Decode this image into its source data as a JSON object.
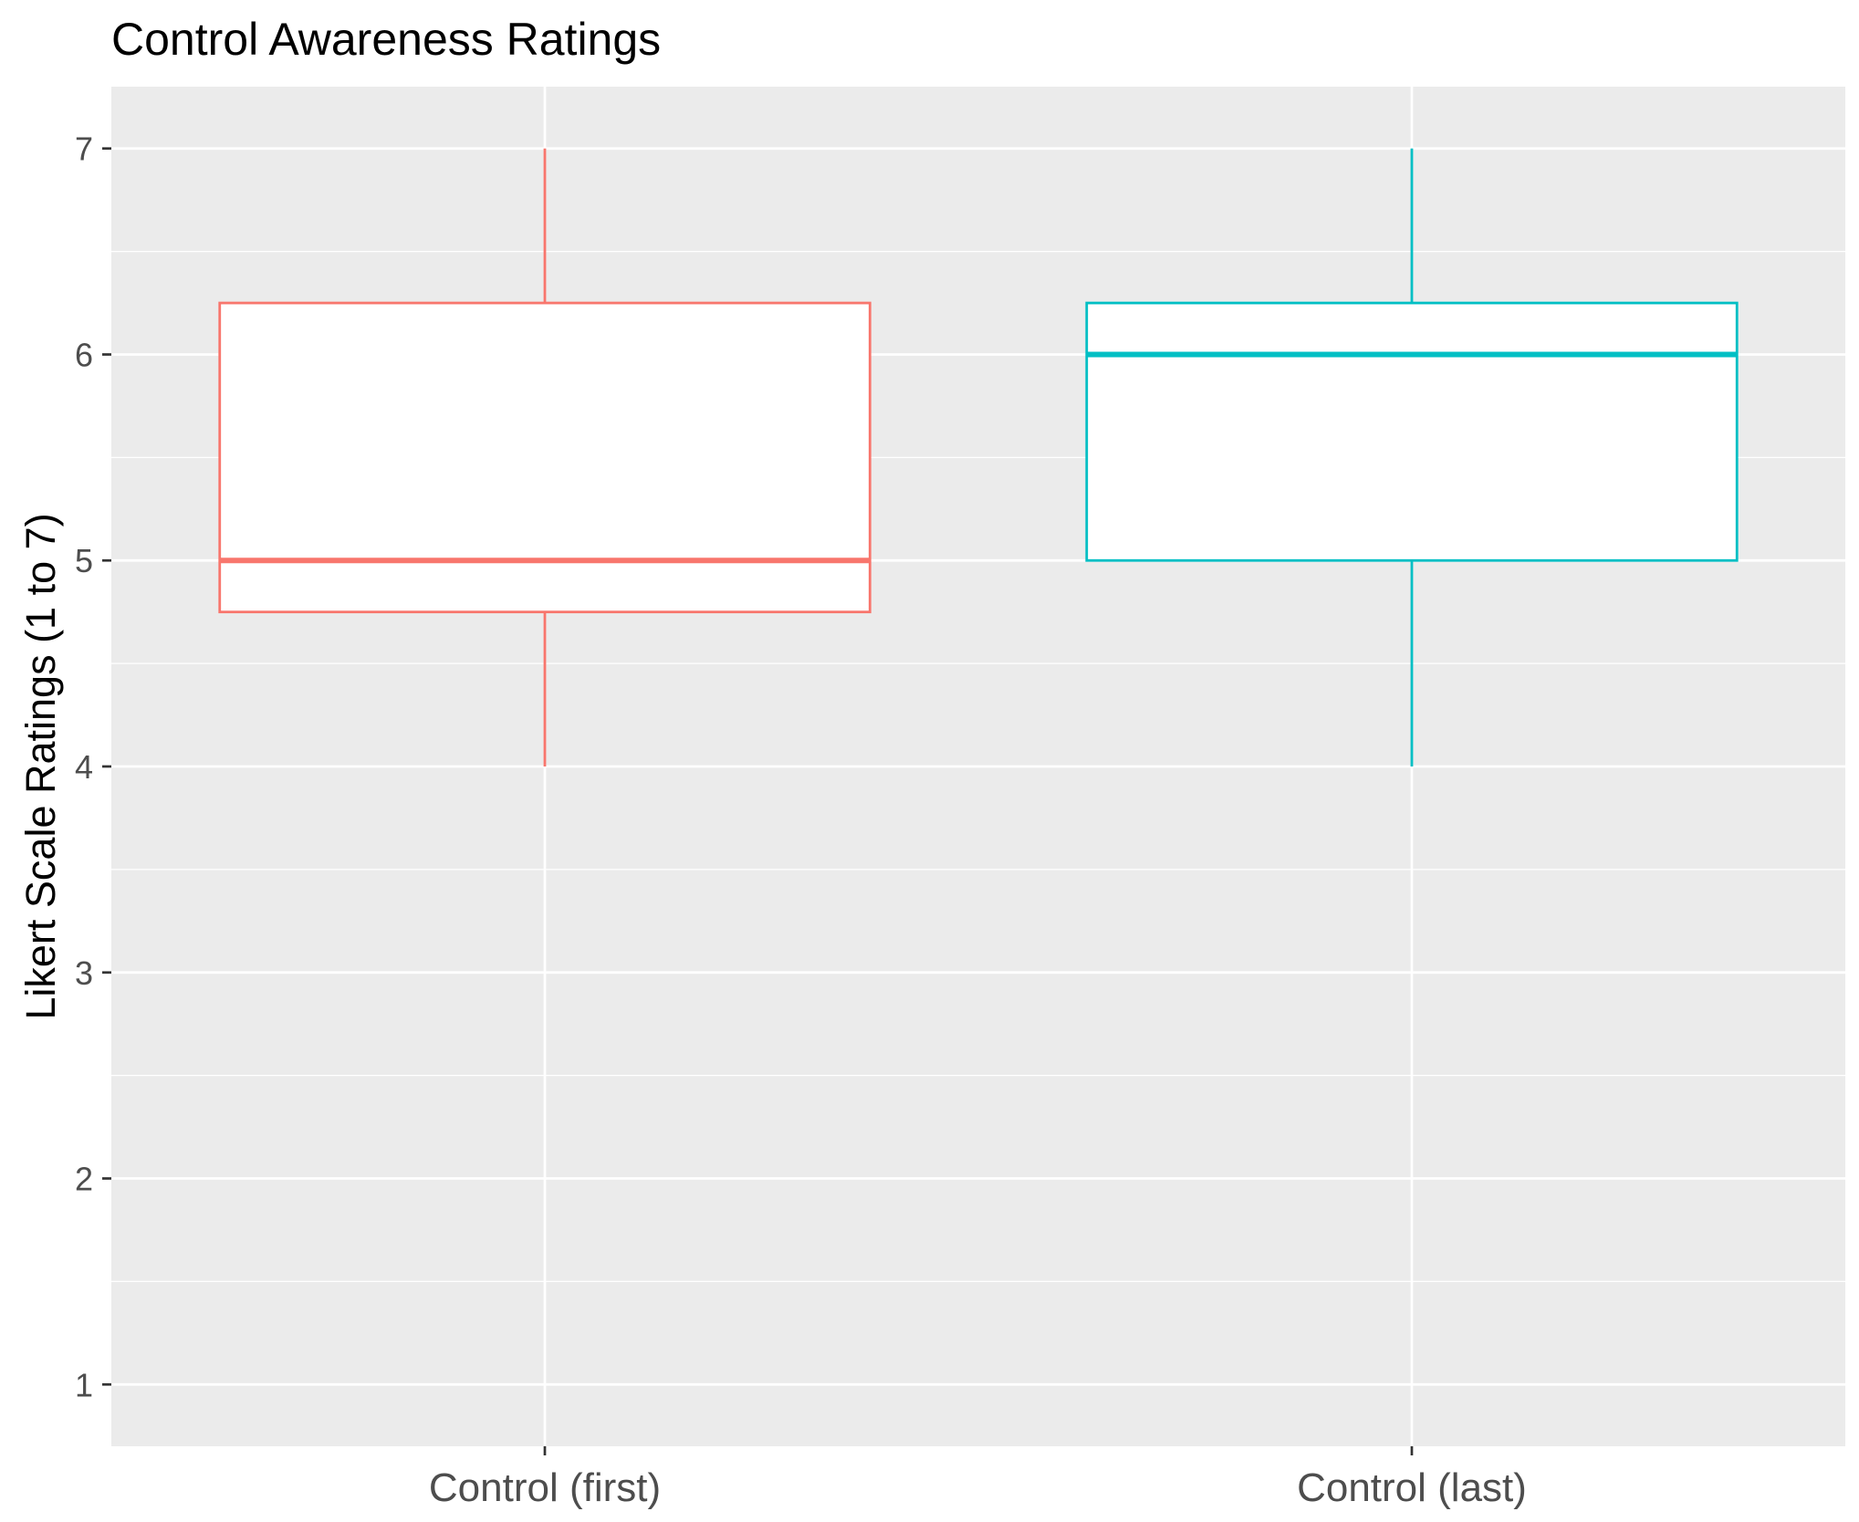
{
  "chart_data": {
    "type": "boxplot",
    "title": "Control Awareness Ratings",
    "xlabel": "",
    "ylabel": "Likert Scale Ratings (1 to 7)",
    "ylim": [
      0.7,
      7.3
    ],
    "yticks": [
      1,
      2,
      3,
      4,
      5,
      6,
      7
    ],
    "categories": [
      "Control (first)",
      "Control (last)"
    ],
    "boxes": [
      {
        "category": "Control (first)",
        "min": 4,
        "q1": 4.75,
        "median": 5,
        "q3": 6.25,
        "max": 7,
        "color": "#F8766D"
      },
      {
        "category": "Control (last)",
        "min": 4,
        "q1": 5,
        "median": 6,
        "q3": 6.25,
        "max": 7,
        "color": "#00BFC4"
      }
    ],
    "panel_background": "#EBEBEB",
    "grid": true,
    "legend": "none"
  }
}
